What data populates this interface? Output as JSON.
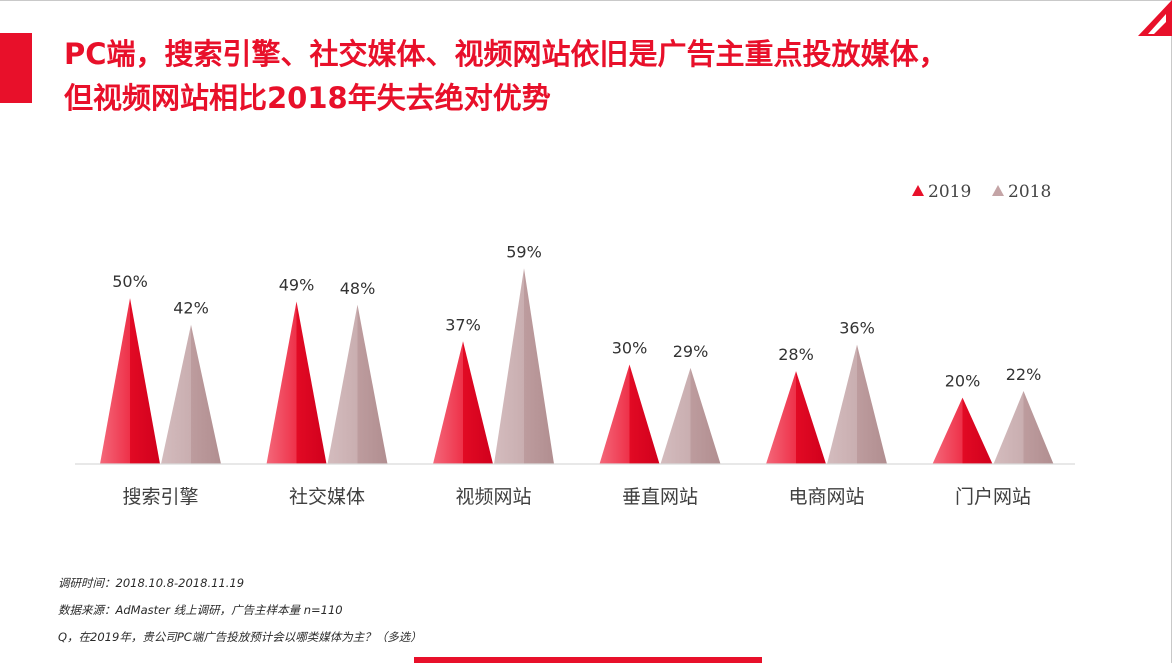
{
  "title": {
    "line1": "PC端，搜索引擎、社交媒体、视频网站依旧是广告主重点投放媒体，",
    "line2": "但视频网站相比2018年失去绝对优势"
  },
  "colors": {
    "accent": "#e8102a",
    "series_2019": "#e8102a",
    "series_2018": "#c4a4a6"
  },
  "chart_data": {
    "type": "bar",
    "mark_shape": "triangle",
    "categories": [
      "搜索引擎",
      "社交媒体",
      "视频网站",
      "垂直网站",
      "电商网站",
      "门户网站"
    ],
    "series": [
      {
        "name": "2019",
        "values": [
          50,
          49,
          37,
          30,
          28,
          20
        ],
        "labels": [
          "50%",
          "49%",
          "37%",
          "30%",
          "28%",
          "20%"
        ],
        "color": "#e8102a"
      },
      {
        "name": "2018",
        "values": [
          42,
          48,
          59,
          29,
          36,
          22
        ],
        "labels": [
          "42%",
          "48%",
          "59%",
          "29%",
          "36%",
          "22%"
        ],
        "color": "#c4a4a6"
      }
    ],
    "ylim": [
      0,
      60
    ],
    "grid": false,
    "legend_position": "top-right"
  },
  "notes": {
    "survey_time": "调研时间：2018.10.8-2018.11.19",
    "data_source": "数据来源：AdMaster  线上调研，广告主样本量 n=110",
    "question": "Q，在2019年，贵公司PC端广告投放预计会以哪类媒体为主？（多选）"
  }
}
